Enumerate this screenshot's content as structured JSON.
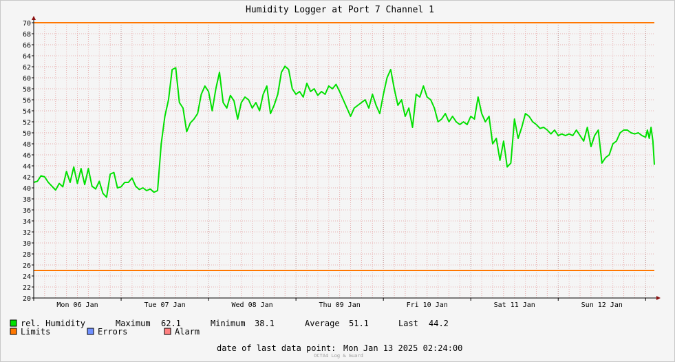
{
  "chart_data": {
    "type": "line",
    "title": "Humidity Logger at Port 7 Channel 1",
    "ylim": [
      20,
      70
    ],
    "yticks": [
      20,
      22,
      24,
      26,
      28,
      30,
      32,
      34,
      36,
      38,
      40,
      42,
      44,
      46,
      48,
      50,
      52,
      54,
      56,
      58,
      60,
      62,
      64,
      66,
      68,
      70
    ],
    "xlim": [
      "2025-01-06 00:00",
      "2025-01-13 02:24"
    ],
    "xticks": [
      {
        "label": "Mon 06 Jan",
        "t": "2025-01-06 12:00"
      },
      {
        "label": "Tue 07 Jan",
        "t": "2025-01-07 12:00"
      },
      {
        "label": "Wed 08 Jan",
        "t": "2025-01-08 12:00"
      },
      {
        "label": "Thu 09 Jan",
        "t": "2025-01-09 12:00"
      },
      {
        "label": "Fri 10 Jan",
        "t": "2025-01-10 12:00"
      },
      {
        "label": "Sat 11 Jan",
        "t": "2025-01-11 12:00"
      },
      {
        "label": "Sun 12 Jan",
        "t": "2025-01-12 12:00"
      }
    ],
    "grid": true,
    "limits": [
      70,
      25
    ],
    "series": [
      {
        "name": "rel. Humidity",
        "color": "#00e000",
        "points": [
          [
            "2025-01-06 00:00",
            41.0
          ],
          [
            "2025-01-06 01:00",
            41.2
          ],
          [
            "2025-01-06 02:00",
            42.2
          ],
          [
            "2025-01-06 03:00",
            42.0
          ],
          [
            "2025-01-06 04:00",
            41.0
          ],
          [
            "2025-01-06 05:00",
            40.3
          ],
          [
            "2025-01-06 06:00",
            39.6
          ],
          [
            "2025-01-06 07:00",
            40.8
          ],
          [
            "2025-01-06 08:00",
            40.2
          ],
          [
            "2025-01-06 09:00",
            43.0
          ],
          [
            "2025-01-06 10:00",
            41.0
          ],
          [
            "2025-01-06 11:00",
            43.8
          ],
          [
            "2025-01-06 12:00",
            40.8
          ],
          [
            "2025-01-06 13:00",
            43.5
          ],
          [
            "2025-01-06 14:00",
            40.6
          ],
          [
            "2025-01-06 15:00",
            43.5
          ],
          [
            "2025-01-06 16:00",
            40.3
          ],
          [
            "2025-01-06 17:00",
            39.8
          ],
          [
            "2025-01-06 18:00",
            41.2
          ],
          [
            "2025-01-06 19:00",
            39.0
          ],
          [
            "2025-01-06 20:00",
            38.3
          ],
          [
            "2025-01-06 21:00",
            42.5
          ],
          [
            "2025-01-06 22:00",
            42.8
          ],
          [
            "2025-01-06 23:00",
            40.0
          ],
          [
            "2025-01-07 00:00",
            40.2
          ],
          [
            "2025-01-07 01:00",
            41.0
          ],
          [
            "2025-01-07 02:00",
            41.0
          ],
          [
            "2025-01-07 03:00",
            41.8
          ],
          [
            "2025-01-07 04:00",
            40.3
          ],
          [
            "2025-01-07 05:00",
            39.7
          ],
          [
            "2025-01-07 06:00",
            40.0
          ],
          [
            "2025-01-07 07:00",
            39.5
          ],
          [
            "2025-01-07 08:00",
            39.8
          ],
          [
            "2025-01-07 09:00",
            39.2
          ],
          [
            "2025-01-07 10:00",
            39.5
          ],
          [
            "2025-01-07 11:00",
            48.0
          ],
          [
            "2025-01-07 12:00",
            53.0
          ],
          [
            "2025-01-07 13:00",
            56.0
          ],
          [
            "2025-01-07 14:00",
            61.5
          ],
          [
            "2025-01-07 15:00",
            61.8
          ],
          [
            "2025-01-07 16:00",
            55.5
          ],
          [
            "2025-01-07 17:00",
            54.5
          ],
          [
            "2025-01-07 18:00",
            50.2
          ],
          [
            "2025-01-07 19:00",
            51.8
          ],
          [
            "2025-01-07 20:00",
            52.5
          ],
          [
            "2025-01-07 21:00",
            53.5
          ],
          [
            "2025-01-07 22:00",
            57.0
          ],
          [
            "2025-01-07 23:00",
            58.5
          ],
          [
            "2025-01-08 00:00",
            57.5
          ],
          [
            "2025-01-08 01:00",
            54.0
          ],
          [
            "2025-01-08 02:00",
            58.0
          ],
          [
            "2025-01-08 03:00",
            61.0
          ],
          [
            "2025-01-08 04:00",
            55.5
          ],
          [
            "2025-01-08 05:00",
            54.5
          ],
          [
            "2025-01-08 06:00",
            56.8
          ],
          [
            "2025-01-08 07:00",
            55.8
          ],
          [
            "2025-01-08 08:00",
            52.5
          ],
          [
            "2025-01-08 09:00",
            55.5
          ],
          [
            "2025-01-08 10:00",
            56.5
          ],
          [
            "2025-01-08 11:00",
            56.0
          ],
          [
            "2025-01-08 12:00",
            54.5
          ],
          [
            "2025-01-08 13:00",
            55.5
          ],
          [
            "2025-01-08 14:00",
            54.0
          ],
          [
            "2025-01-08 15:00",
            57.0
          ],
          [
            "2025-01-08 16:00",
            58.5
          ],
          [
            "2025-01-08 17:00",
            53.5
          ],
          [
            "2025-01-08 18:00",
            55.0
          ],
          [
            "2025-01-08 19:00",
            57.0
          ],
          [
            "2025-01-08 20:00",
            61.0
          ],
          [
            "2025-01-08 21:00",
            62.1
          ],
          [
            "2025-01-08 22:00",
            61.5
          ],
          [
            "2025-01-08 23:00",
            58.0
          ],
          [
            "2025-01-09 00:00",
            57.0
          ],
          [
            "2025-01-09 01:00",
            57.5
          ],
          [
            "2025-01-09 02:00",
            56.5
          ],
          [
            "2025-01-09 03:00",
            59.0
          ],
          [
            "2025-01-09 04:00",
            57.5
          ],
          [
            "2025-01-09 05:00",
            58.0
          ],
          [
            "2025-01-09 06:00",
            56.8
          ],
          [
            "2025-01-09 07:00",
            57.5
          ],
          [
            "2025-01-09 08:00",
            57.0
          ],
          [
            "2025-01-09 09:00",
            58.5
          ],
          [
            "2025-01-09 10:00",
            58.0
          ],
          [
            "2025-01-09 11:00",
            58.8
          ],
          [
            "2025-01-09 12:00",
            57.5
          ],
          [
            "2025-01-09 13:00",
            56.0
          ],
          [
            "2025-01-09 14:00",
            54.5
          ],
          [
            "2025-01-09 15:00",
            53.0
          ],
          [
            "2025-01-09 16:00",
            54.5
          ],
          [
            "2025-01-09 17:00",
            55.0
          ],
          [
            "2025-01-09 18:00",
            55.5
          ],
          [
            "2025-01-09 19:00",
            56.0
          ],
          [
            "2025-01-09 20:00",
            54.5
          ],
          [
            "2025-01-09 21:00",
            57.0
          ],
          [
            "2025-01-09 22:00",
            55.0
          ],
          [
            "2025-01-09 23:00",
            53.5
          ],
          [
            "2025-01-10 00:00",
            57.0
          ],
          [
            "2025-01-10 01:00",
            60.0
          ],
          [
            "2025-01-10 02:00",
            61.5
          ],
          [
            "2025-01-10 03:00",
            58.0
          ],
          [
            "2025-01-10 04:00",
            55.0
          ],
          [
            "2025-01-10 05:00",
            56.0
          ],
          [
            "2025-01-10 06:00",
            53.0
          ],
          [
            "2025-01-10 07:00",
            54.5
          ],
          [
            "2025-01-10 08:00",
            51.0
          ],
          [
            "2025-01-10 09:00",
            57.0
          ],
          [
            "2025-01-10 10:00",
            56.5
          ],
          [
            "2025-01-10 11:00",
            58.5
          ],
          [
            "2025-01-10 12:00",
            56.5
          ],
          [
            "2025-01-10 13:00",
            56.0
          ],
          [
            "2025-01-10 14:00",
            54.5
          ],
          [
            "2025-01-10 15:00",
            52.0
          ],
          [
            "2025-01-10 16:00",
            52.5
          ],
          [
            "2025-01-10 17:00",
            53.5
          ],
          [
            "2025-01-10 18:00",
            52.0
          ],
          [
            "2025-01-10 19:00",
            53.0
          ],
          [
            "2025-01-10 20:00",
            52.0
          ],
          [
            "2025-01-10 21:00",
            51.5
          ],
          [
            "2025-01-10 22:00",
            52.0
          ],
          [
            "2025-01-10 23:00",
            51.5
          ],
          [
            "2025-01-11 00:00",
            53.0
          ],
          [
            "2025-01-11 01:00",
            52.5
          ],
          [
            "2025-01-11 02:00",
            56.5
          ],
          [
            "2025-01-11 03:00",
            53.5
          ],
          [
            "2025-01-11 04:00",
            52.0
          ],
          [
            "2025-01-11 05:00",
            53.0
          ],
          [
            "2025-01-11 06:00",
            48.0
          ],
          [
            "2025-01-11 07:00",
            49.0
          ],
          [
            "2025-01-11 08:00",
            45.0
          ],
          [
            "2025-01-11 09:00",
            48.5
          ],
          [
            "2025-01-11 10:00",
            43.8
          ],
          [
            "2025-01-11 11:00",
            44.5
          ],
          [
            "2025-01-11 12:00",
            52.5
          ],
          [
            "2025-01-11 13:00",
            49.0
          ],
          [
            "2025-01-11 14:00",
            51.0
          ],
          [
            "2025-01-11 15:00",
            53.5
          ],
          [
            "2025-01-11 16:00",
            53.0
          ],
          [
            "2025-01-11 17:00",
            52.0
          ],
          [
            "2025-01-11 18:00",
            51.5
          ],
          [
            "2025-01-11 19:00",
            50.8
          ],
          [
            "2025-01-11 20:00",
            51.0
          ],
          [
            "2025-01-11 21:00",
            50.5
          ],
          [
            "2025-01-11 22:00",
            49.8
          ],
          [
            "2025-01-11 23:00",
            50.5
          ],
          [
            "2025-01-12 00:00",
            49.5
          ],
          [
            "2025-01-12 01:00",
            49.8
          ],
          [
            "2025-01-12 02:00",
            49.5
          ],
          [
            "2025-01-12 03:00",
            49.8
          ],
          [
            "2025-01-12 04:00",
            49.5
          ],
          [
            "2025-01-12 05:00",
            50.5
          ],
          [
            "2025-01-12 06:00",
            49.5
          ],
          [
            "2025-01-12 07:00",
            48.5
          ],
          [
            "2025-01-12 08:00",
            51.0
          ],
          [
            "2025-01-12 09:00",
            47.5
          ],
          [
            "2025-01-12 10:00",
            49.5
          ],
          [
            "2025-01-12 11:00",
            50.5
          ],
          [
            "2025-01-12 12:00",
            44.5
          ],
          [
            "2025-01-12 13:00",
            45.5
          ],
          [
            "2025-01-12 14:00",
            46.0
          ],
          [
            "2025-01-12 15:00",
            48.0
          ],
          [
            "2025-01-12 16:00",
            48.5
          ],
          [
            "2025-01-12 17:00",
            50.0
          ],
          [
            "2025-01-12 18:00",
            50.5
          ],
          [
            "2025-01-12 19:00",
            50.5
          ],
          [
            "2025-01-12 20:00",
            50.0
          ],
          [
            "2025-01-12 21:00",
            49.8
          ],
          [
            "2025-01-12 22:00",
            50.0
          ],
          [
            "2025-01-12 23:00",
            49.5
          ],
          [
            "2025-01-13 00:00",
            49.2
          ],
          [
            "2025-01-13 00:30",
            50.5
          ],
          [
            "2025-01-13 01:00",
            49.0
          ],
          [
            "2025-01-13 01:30",
            51.0
          ],
          [
            "2025-01-13 02:00",
            48.5
          ],
          [
            "2025-01-13 02:24",
            44.2
          ]
        ]
      }
    ]
  },
  "legend": {
    "series_label": "rel. Humidity",
    "limits_label": "Limits",
    "errors_label": "Errors",
    "alarm_label": "Alarm",
    "max_label": "Maximum",
    "max_value": "62.1",
    "min_label": "Minimum",
    "min_value": "38.1",
    "avg_label": "Average",
    "avg_value": "51.1",
    "last_label": "Last",
    "last_value": "44.2"
  },
  "footer": {
    "date_label": "date of last data point:",
    "date_value": "Mon Jan 13 2025 02:24:00",
    "watermark": "OCTA4 Log & Guard"
  },
  "colors": {
    "series": "#00e000",
    "limits": "#ff7700",
    "errors": "#6f8fff",
    "alarm": "#ff8080",
    "grid": "#e8b0b0",
    "axis": "#000000"
  }
}
